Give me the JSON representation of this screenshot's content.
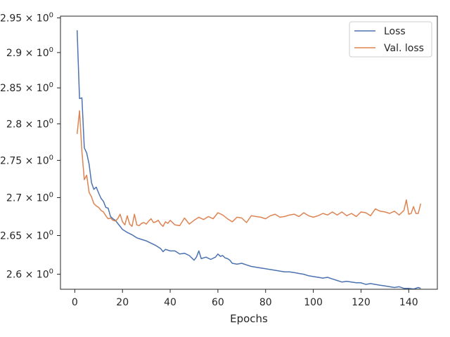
{
  "chart_data": {
    "type": "line",
    "title": "",
    "xlabel": "Epochs",
    "ylabel": "",
    "xlim": [
      -6,
      152
    ],
    "ylim": [
      2.5808,
      2.9525
    ],
    "yscale": "log",
    "grid": false,
    "legend_position": "top-right",
    "xticks": [
      0,
      20,
      40,
      60,
      80,
      100,
      120,
      140
    ],
    "yticks": [
      {
        "value": 2.6,
        "mantissa": "2.6"
      },
      {
        "value": 2.65,
        "mantissa": "2.65"
      },
      {
        "value": 2.7,
        "mantissa": "2.7"
      },
      {
        "value": 2.75,
        "mantissa": "2.75"
      },
      {
        "value": 2.8,
        "mantissa": "2.8"
      },
      {
        "value": 2.85,
        "mantissa": "2.85"
      },
      {
        "value": 2.9,
        "mantissa": "2.9"
      },
      {
        "value": 2.95,
        "mantissa": "2.95"
      }
    ],
    "ytick_suffix": "× 10",
    "ytick_exponent": "0",
    "series": [
      {
        "name": "Loss",
        "color": "#4c72b0",
        "x": [
          1,
          2,
          3,
          4,
          5,
          6,
          7,
          8,
          9,
          10,
          11,
          12,
          13,
          14,
          15,
          16,
          17,
          18,
          19,
          20,
          22,
          24,
          26,
          28,
          30,
          32,
          34,
          36,
          37,
          38,
          40,
          42,
          44,
          46,
          48,
          50,
          51,
          52,
          53,
          55,
          57,
          59,
          60,
          61,
          62,
          63,
          64,
          65,
          66,
          68,
          70,
          72,
          74,
          76,
          78,
          80,
          82,
          84,
          86,
          88,
          90,
          92,
          94,
          96,
          98,
          100,
          102,
          104,
          106,
          108,
          110,
          112,
          114,
          116,
          118,
          120,
          122,
          124,
          126,
          128,
          130,
          132,
          134,
          136,
          138,
          140,
          142,
          144,
          145
        ],
        "values": [
          2.932,
          2.835,
          2.836,
          2.767,
          2.76,
          2.745,
          2.72,
          2.711,
          2.714,
          2.706,
          2.699,
          2.695,
          2.687,
          2.686,
          2.675,
          2.672,
          2.67,
          2.666,
          2.662,
          2.658,
          2.654,
          2.651,
          2.647,
          2.645,
          2.643,
          2.64,
          2.637,
          2.633,
          2.629,
          2.632,
          2.63,
          2.63,
          2.626,
          2.627,
          2.624,
          2.618,
          2.622,
          2.63,
          2.62,
          2.622,
          2.619,
          2.622,
          2.626,
          2.623,
          2.624,
          2.621,
          2.62,
          2.618,
          2.614,
          2.613,
          2.614,
          2.612,
          2.61,
          2.609,
          2.608,
          2.607,
          2.606,
          2.605,
          2.604,
          2.603,
          2.603,
          2.602,
          2.601,
          2.6,
          2.598,
          2.597,
          2.596,
          2.595,
          2.596,
          2.594,
          2.592,
          2.59,
          2.591,
          2.59,
          2.589,
          2.589,
          2.587,
          2.588,
          2.587,
          2.586,
          2.585,
          2.584,
          2.583,
          2.584,
          2.582,
          2.582,
          2.581,
          2.583,
          2.582
        ]
      },
      {
        "name": "Val. loss",
        "color": "#dd8452",
        "x": [
          1,
          2,
          3,
          4,
          5,
          6,
          7,
          8,
          9,
          10,
          11,
          12,
          13,
          14,
          15,
          16,
          17,
          18,
          19,
          20,
          21,
          22,
          23,
          24,
          25,
          26,
          27,
          28,
          29,
          30,
          31,
          32,
          33,
          34,
          35,
          36,
          37,
          38,
          39,
          40,
          42,
          44,
          46,
          48,
          50,
          52,
          54,
          56,
          58,
          60,
          62,
          64,
          66,
          68,
          70,
          72,
          74,
          76,
          78,
          80,
          82,
          84,
          86,
          88,
          90,
          92,
          94,
          96,
          98,
          100,
          102,
          104,
          106,
          108,
          110,
          112,
          114,
          116,
          118,
          120,
          122,
          124,
          126,
          128,
          130,
          132,
          134,
          136,
          138,
          139,
          140,
          141,
          142,
          143,
          144,
          145
        ],
        "values": [
          2.786,
          2.818,
          2.762,
          2.724,
          2.73,
          2.707,
          2.701,
          2.692,
          2.689,
          2.687,
          2.683,
          2.681,
          2.676,
          2.672,
          2.673,
          2.67,
          2.669,
          2.672,
          2.678,
          2.668,
          2.664,
          2.676,
          2.665,
          2.662,
          2.678,
          2.664,
          2.663,
          2.666,
          2.667,
          2.665,
          2.669,
          2.672,
          2.667,
          2.668,
          2.67,
          2.665,
          2.662,
          2.668,
          2.666,
          2.67,
          2.664,
          2.663,
          2.673,
          2.665,
          2.67,
          2.674,
          2.671,
          2.675,
          2.672,
          2.68,
          2.677,
          2.672,
          2.668,
          2.674,
          2.673,
          2.667,
          2.676,
          2.675,
          2.674,
          2.672,
          2.676,
          2.678,
          2.674,
          2.675,
          2.677,
          2.678,
          2.675,
          2.68,
          2.676,
          2.674,
          2.676,
          2.679,
          2.677,
          2.681,
          2.677,
          2.681,
          2.676,
          2.679,
          2.675,
          2.681,
          2.68,
          2.676,
          2.685,
          2.682,
          2.681,
          2.679,
          2.682,
          2.677,
          2.683,
          2.697,
          2.678,
          2.679,
          2.688,
          2.679,
          2.679,
          2.692
        ]
      }
    ]
  }
}
